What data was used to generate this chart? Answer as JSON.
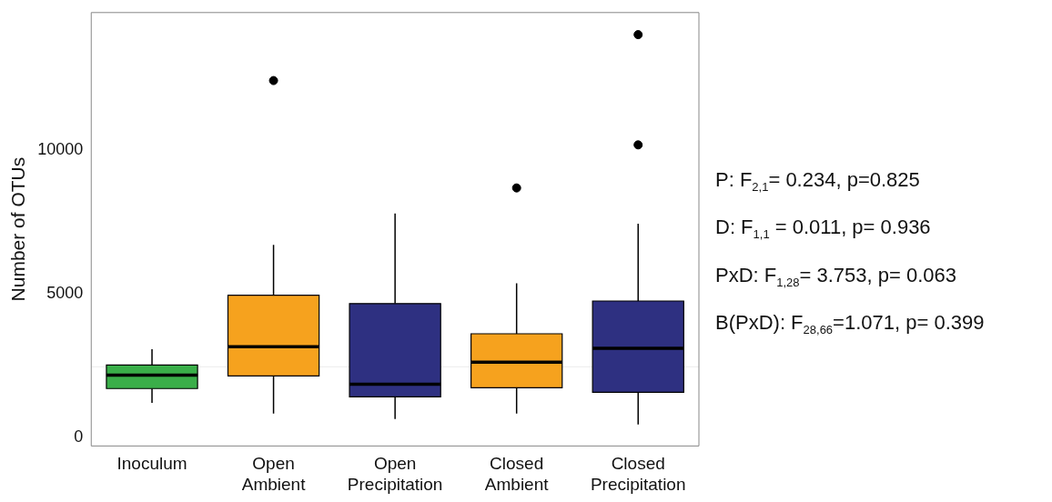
{
  "chart_data": {
    "type": "box",
    "ylabel": "Number of OTUs",
    "categories": [
      "Inoculum",
      "Open\nAmbient",
      "Open\nPrecipitation",
      "Closed\nAmbient",
      "Closed\nPrecipitation"
    ],
    "colors": [
      "#3aae49",
      "#f6a21e",
      "#2e3081",
      "#f6a21e",
      "#2e3081"
    ],
    "boxes": [
      {
        "low": 1200,
        "q1": 1700,
        "median": 2170,
        "q3": 2520,
        "high": 3070
      },
      {
        "low": 830,
        "q1": 2140,
        "median": 3160,
        "q3": 4950,
        "high": 6710,
        "outliers": [
          12430
        ]
      },
      {
        "low": 640,
        "q1": 1410,
        "median": 1850,
        "q3": 4660,
        "high": 7800
      },
      {
        "low": 830,
        "q1": 1730,
        "median": 2620,
        "q3": 3610,
        "high": 5370,
        "outliers": [
          8690
        ]
      },
      {
        "low": 450,
        "q1": 1570,
        "median": 3100,
        "q3": 4750,
        "high": 7440,
        "outliers": [
          10190,
          14030
        ]
      }
    ],
    "ylim": [
      -300,
      14800
    ],
    "yticks": [
      0,
      5000,
      10000
    ],
    "grid": false,
    "ref_lines": [
      {
        "axis": "y",
        "value": 2460,
        "color": "#ececec"
      }
    ],
    "annotations": [
      "P: F$_{2,1}$=  0.234, p=0.825",
      "D: F$_{1,1}$ = 0.011, p= 0.936",
      "PxD: F$_{1,28}$= 3.753, p= 0.063",
      "B(PxD): F$_{28,66}$=1.071, p= 0.399"
    ]
  }
}
